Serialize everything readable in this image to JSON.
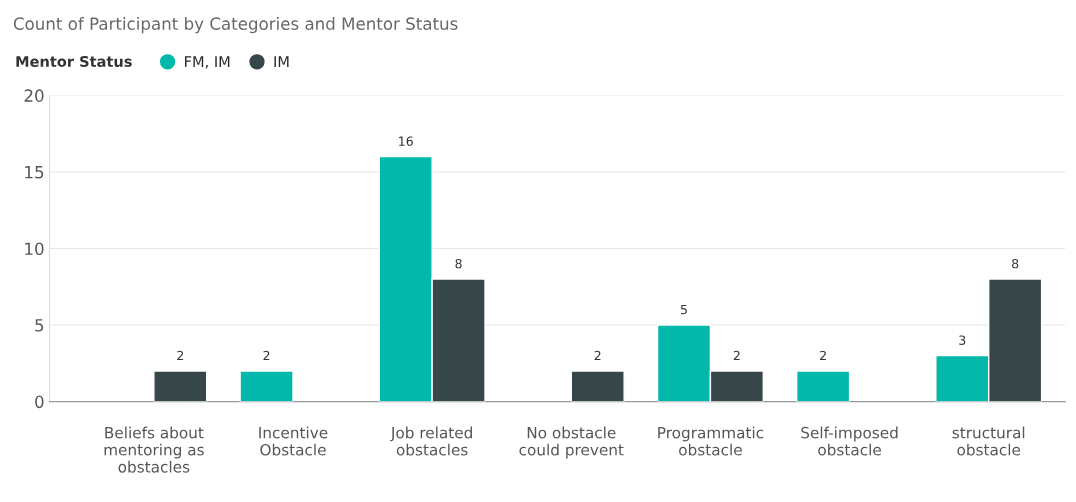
{
  "chart_data": {
    "type": "bar",
    "title": "Count of Participant by Categories and Mentor Status",
    "legend_title": "Mentor Status",
    "categories": [
      "Beliefs about\nmentoring as\nobstacles",
      "Incentive\nObstacle",
      "Job related\nobstacles",
      "No obstacle\ncould prevent",
      "Programmatic\nobstacle",
      "Self-imposed\nobstacle",
      "structural\nobstacle"
    ],
    "series": [
      {
        "name": "FM, IM",
        "color": "#01b8aa",
        "values": [
          null,
          2,
          16,
          null,
          5,
          2,
          3
        ]
      },
      {
        "name": "IM",
        "color": "#374649",
        "values": [
          2,
          null,
          8,
          2,
          2,
          null,
          8
        ]
      }
    ],
    "ylim": [
      0,
      20
    ],
    "yticks": [
      0,
      5,
      10,
      15,
      20
    ],
    "grid": "y",
    "legend": "top left",
    "data_labels": true
  }
}
